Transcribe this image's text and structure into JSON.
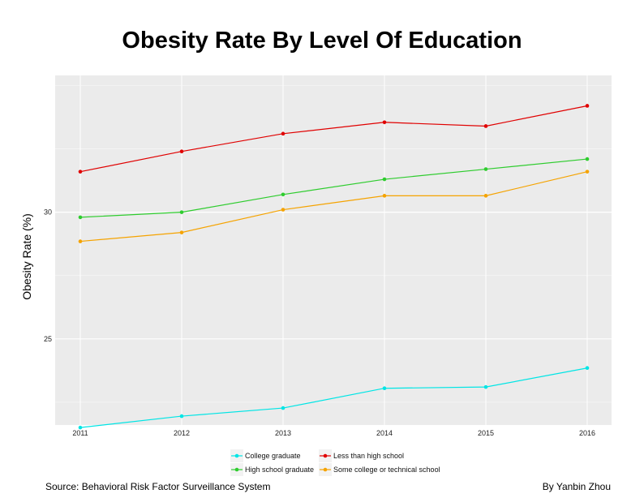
{
  "chart_data": {
    "type": "line",
    "title": "Obesity Rate By Level Of Education",
    "xlabel": "",
    "ylabel": "Obesity Rate (%)",
    "x": [
      "2011",
      "2012",
      "2013",
      "2014",
      "2015",
      "2016"
    ],
    "ylim": [
      21.6,
      35.4
    ],
    "yticks": [
      25,
      30
    ],
    "grid": true,
    "legend_position": "bottom",
    "series": [
      {
        "name": "College graduate",
        "color": "#00e5e5",
        "values": [
          21.5,
          21.95,
          22.27,
          23.05,
          23.1,
          23.85
        ]
      },
      {
        "name": "High school graduate",
        "color": "#2ecc2e",
        "values": [
          29.8,
          30.0,
          30.7,
          31.3,
          31.7,
          32.1
        ]
      },
      {
        "name": "Less than high school",
        "color": "#e00000",
        "values": [
          31.6,
          32.4,
          33.1,
          33.55,
          33.4,
          34.2
        ]
      },
      {
        "name": "Some college or technical school",
        "color": "#f5a300",
        "values": [
          28.85,
          29.2,
          30.1,
          30.65,
          30.65,
          31.6
        ]
      }
    ],
    "legend_order": [
      [
        "College graduate",
        "Less than high school"
      ],
      [
        "High school graduate",
        "Some college or technical school"
      ]
    ]
  },
  "footer": {
    "source": "Source: Behavioral Risk Factor Surveillance System",
    "author": "By Yanbin Zhou"
  }
}
